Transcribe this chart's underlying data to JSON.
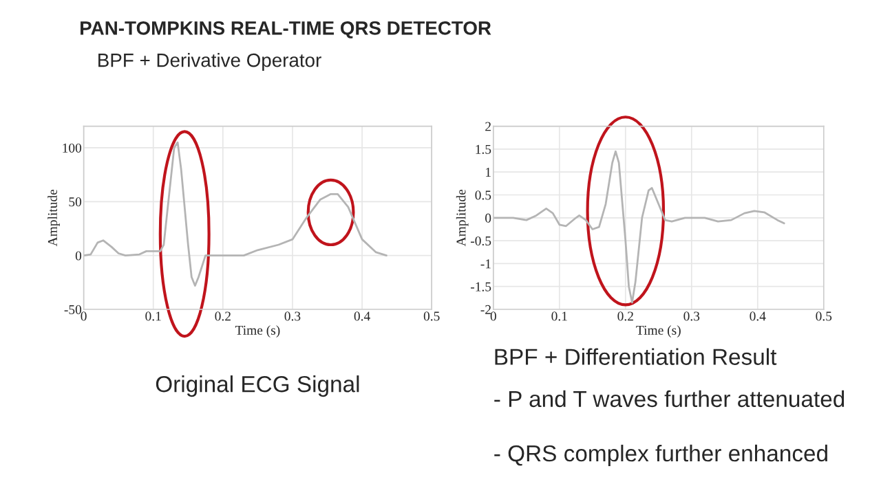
{
  "chart_data": [
    {
      "type": "line",
      "title": "Original ECG Signal",
      "xlabel": "Time (s)",
      "ylabel": "Amplitude",
      "annotations": [
        "PAN-TOMPKINS REAL-TIME QRS DETECTOR",
        "BPF + Derivative Operator"
      ],
      "x": [
        0,
        0.01,
        0.02,
        0.028,
        0.04,
        0.05,
        0.06,
        0.08,
        0.09,
        0.11,
        0.115,
        0.12,
        0.13,
        0.135,
        0.14,
        0.15,
        0.155,
        0.16,
        0.165,
        0.175,
        0.2,
        0.23,
        0.25,
        0.28,
        0.3,
        0.32,
        0.34,
        0.355,
        0.365,
        0.38,
        0.4,
        0.42,
        0.435
      ],
      "series": [
        {
          "color": "#b4b4b4",
          "values": [
            0,
            1,
            12,
            14,
            8,
            2,
            0,
            1,
            4,
            4,
            10,
            40,
            100,
            105,
            80,
            10,
            -20,
            -28,
            -20,
            0,
            0,
            0,
            5,
            10,
            15,
            35,
            52,
            57,
            57,
            45,
            15,
            3,
            0
          ]
        }
      ],
      "xlim": [
        0,
        0.5
      ],
      "xticks": [
        0,
        0.1,
        0.2,
        0.3,
        0.4,
        0.5
      ],
      "ylim": [
        -50,
        120
      ],
      "yticks": [
        -50,
        0,
        50,
        100
      ],
      "grid": true,
      "legend": false
    },
    {
      "type": "line",
      "title": "BPF + Differentiation Result",
      "xlabel": "Time (s)",
      "ylabel": "Amplitude",
      "annotations": [
        "- P and T waves further attenuated",
        "- QRS complex further enhanced"
      ],
      "x": [
        0,
        0.03,
        0.05,
        0.065,
        0.08,
        0.09,
        0.1,
        0.11,
        0.125,
        0.13,
        0.14,
        0.15,
        0.16,
        0.17,
        0.18,
        0.185,
        0.19,
        0.2,
        0.205,
        0.21,
        0.215,
        0.225,
        0.235,
        0.24,
        0.25,
        0.26,
        0.27,
        0.29,
        0.32,
        0.34,
        0.36,
        0.38,
        0.395,
        0.41,
        0.43,
        0.44
      ],
      "series": [
        {
          "color": "#b4b4b4",
          "values": [
            0,
            0,
            -0.05,
            0.05,
            0.2,
            0.1,
            -0.15,
            -0.18,
            0,
            0.05,
            -0.05,
            -0.25,
            -0.2,
            0.3,
            1.2,
            1.45,
            1.2,
            -0.5,
            -1.5,
            -1.85,
            -1.4,
            0,
            0.6,
            0.65,
            0.3,
            -0.05,
            -0.08,
            0,
            0,
            -0.08,
            -0.05,
            0.1,
            0.15,
            0.12,
            -0.05,
            -0.12
          ]
        }
      ],
      "xlim": [
        0,
        0.5
      ],
      "xticks": [
        0,
        0.1,
        0.2,
        0.3,
        0.4,
        0.5
      ],
      "ylim": [
        -2,
        2
      ],
      "yticks": [
        -2,
        -1.5,
        -1,
        -0.5,
        0,
        0.5,
        1,
        1.5,
        2
      ],
      "grid": true,
      "legend": false
    }
  ]
}
